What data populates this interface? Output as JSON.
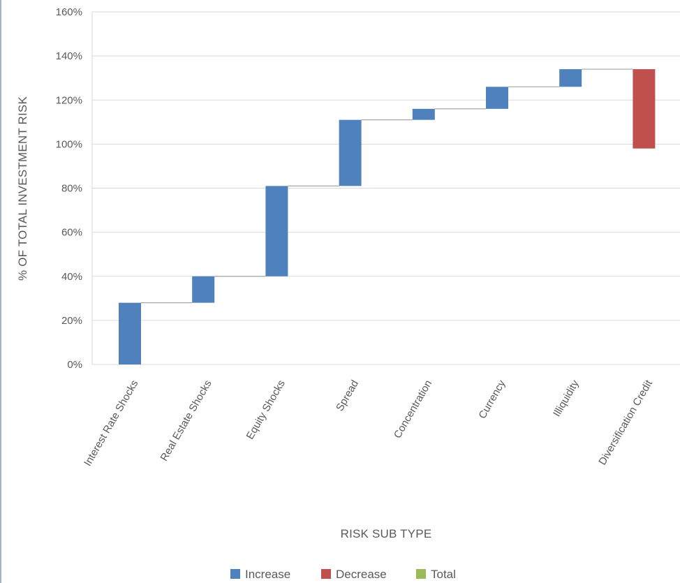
{
  "chart_data": {
    "type": "waterfall",
    "title": "",
    "xlabel": "RISK SUB TYPE",
    "ylabel": "% OF TOTAL INVESTMENT RISK",
    "ylim": [
      0,
      160
    ],
    "yticks": [
      "0%",
      "20%",
      "40%",
      "60%",
      "80%",
      "100%",
      "120%",
      "140%",
      "160%"
    ],
    "yticks_values": [
      0,
      20,
      40,
      60,
      80,
      100,
      120,
      140,
      160
    ],
    "grid": true,
    "legend_position": "bottom",
    "legend": [
      {
        "name": "Increase",
        "color": "#4f81bd"
      },
      {
        "name": "Decrease",
        "color": "#c0504d"
      },
      {
        "name": "Total",
        "color": "#9bbb59"
      }
    ],
    "categories": [
      "Interest Rate Shocks",
      "Real Estate Shocks",
      "Equity Shocks",
      "Spread",
      "Concentration",
      "Currency",
      "Illiquidity",
      "Diversification Credit"
    ],
    "values": [
      28,
      12,
      41,
      30,
      5,
      10,
      8,
      -36
    ],
    "steps": [
      {
        "category": "Interest Rate Shocks",
        "kind": "Increase",
        "start": 0,
        "end": 28
      },
      {
        "category": "Real Estate Shocks",
        "kind": "Increase",
        "start": 28,
        "end": 40
      },
      {
        "category": "Equity Shocks",
        "kind": "Increase",
        "start": 40,
        "end": 81
      },
      {
        "category": "Spread",
        "kind": "Increase",
        "start": 81,
        "end": 111
      },
      {
        "category": "Concentration",
        "kind": "Increase",
        "start": 111,
        "end": 116
      },
      {
        "category": "Currency",
        "kind": "Increase",
        "start": 116,
        "end": 126
      },
      {
        "category": "Illiquidity",
        "kind": "Increase",
        "start": 126,
        "end": 134
      },
      {
        "category": "Diversification Credit",
        "kind": "Decrease",
        "start": 134,
        "end": 98
      }
    ]
  }
}
